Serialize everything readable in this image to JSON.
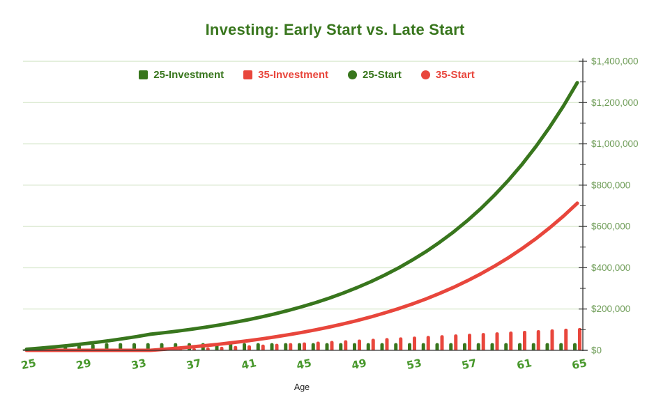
{
  "title": "Investing: Early Start vs. Late Start",
  "x_axis_title": "Age",
  "colors": {
    "series_green": "#38761d",
    "series_red": "#e8463c",
    "grid": "#dcead2",
    "axis": "#333333",
    "y_tick_label": "#6f9d58",
    "x_tick_label": "#48982c",
    "title": "#38761d",
    "age_label": "#222222"
  },
  "legend": [
    {
      "label": "25-Investment",
      "marker": "square",
      "color": "series_green"
    },
    {
      "label": "35-Investment",
      "marker": "square",
      "color": "series_red"
    },
    {
      "label": "25-Start",
      "marker": "circle",
      "color": "series_green"
    },
    {
      "label": "35-Start",
      "marker": "circle",
      "color": "series_red"
    }
  ],
  "chart_data": {
    "type": "combo: bar + line",
    "xlabel": "Age",
    "ylabel": "",
    "ylim": [
      0,
      1400000
    ],
    "grid": true,
    "legend_position": "top",
    "y_axis_side": "right",
    "x": [
      25,
      26,
      27,
      28,
      29,
      30,
      31,
      32,
      33,
      34,
      35,
      36,
      37,
      38,
      39,
      40,
      41,
      42,
      43,
      44,
      45,
      46,
      47,
      48,
      49,
      50,
      51,
      52,
      53,
      54,
      55,
      56,
      57,
      58,
      59,
      60,
      61,
      62,
      63,
      64,
      65
    ],
    "x_tick_labels": [
      25,
      29,
      33,
      37,
      41,
      45,
      49,
      53,
      57,
      61,
      65
    ],
    "y_ticks": [
      {
        "value": 0,
        "label": "$0"
      },
      {
        "value": 200000,
        "label": "$200,000"
      },
      {
        "value": 400000,
        "label": "$400,000"
      },
      {
        "value": 600000,
        "label": "$600,000"
      },
      {
        "value": 800000,
        "label": "$800,000"
      },
      {
        "value": 1000000,
        "label": "$1,000,000"
      },
      {
        "value": 1200000,
        "label": "$1,200,000"
      },
      {
        "value": 1400000,
        "label": "$1,400,000"
      }
    ],
    "series": [
      {
        "name": "25-Investment",
        "type": "bar",
        "color": "series_green",
        "values": [
          5000,
          10000,
          15000,
          20000,
          25000,
          30000,
          35000,
          35000,
          35000,
          35000,
          35000,
          35000,
          35000,
          35000,
          35000,
          35000,
          35000,
          35000,
          35000,
          35000,
          35000,
          35000,
          35000,
          35000,
          35000,
          35000,
          35000,
          35000,
          35000,
          35000,
          35000,
          35000,
          35000,
          35000,
          35000,
          35000,
          35000,
          35000,
          35000,
          35000,
          35000
        ]
      },
      {
        "name": "35-Investment",
        "type": "bar",
        "color": "series_red",
        "values": [
          0,
          0,
          0,
          0,
          0,
          0,
          0,
          0,
          0,
          0,
          3500,
          7000,
          10500,
          14000,
          17500,
          21000,
          24500,
          28000,
          31500,
          35000,
          38500,
          42000,
          45500,
          49000,
          52500,
          56000,
          59500,
          63000,
          66500,
          70000,
          73500,
          77000,
          80500,
          84000,
          87500,
          91000,
          94500,
          98000,
          101500,
          105000,
          108500
        ]
      },
      {
        "name": "25-Start",
        "type": "line",
        "color": "series_green",
        "values": [
          5000,
          10500,
          16500,
          23000,
          30200,
          38100,
          46700,
          56200,
          66500,
          77800,
          85200,
          93300,
          102100,
          111900,
          122500,
          134100,
          146900,
          160800,
          176100,
          192800,
          211100,
          231200,
          253100,
          277200,
          303500,
          332400,
          363900,
          398500,
          436400,
          477800,
          523200,
          572900,
          627300,
          686900,
          752200,
          823700,
          901900,
          987600,
          1081400,
          1184200,
          1296600
        ]
      },
      {
        "name": "35-Start",
        "type": "line",
        "color": "series_red",
        "values": [
          0,
          0,
          0,
          0,
          0,
          0,
          0,
          0,
          0,
          0,
          5000,
          10400,
          16400,
          22800,
          29800,
          37400,
          45700,
          54600,
          64400,
          75100,
          86600,
          99200,
          112900,
          127800,
          144000,
          161500,
          180700,
          201500,
          224100,
          248700,
          275500,
          304600,
          336300,
          370700,
          408100,
          448800,
          493100,
          541200,
          593600,
          650500,
          712500
        ]
      }
    ]
  }
}
